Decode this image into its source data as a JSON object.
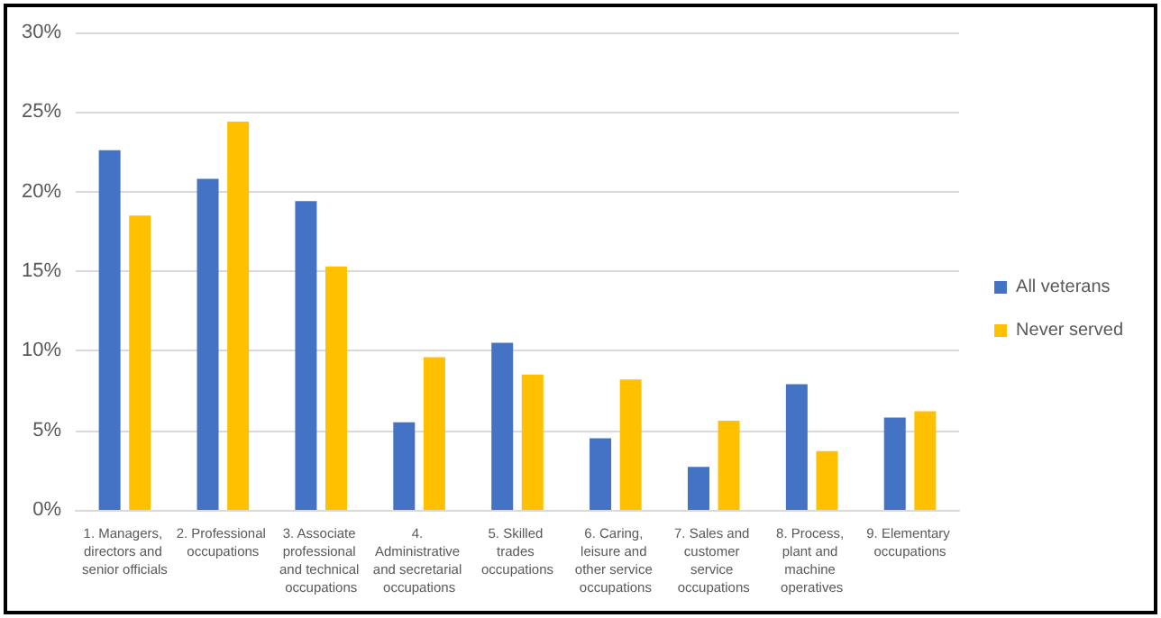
{
  "chart_data": {
    "type": "bar",
    "categories": [
      "1. Managers, directors and senior officials",
      "2. Professional occupations",
      "3. Associate professional and technical occupations",
      "4. Administrative and secretarial occupations",
      "5. Skilled trades occupations",
      "6. Caring, leisure and other service occupations",
      "7. Sales and customer service occupations",
      "8. Process, plant and machine operatives",
      "9. Elementary occupations"
    ],
    "series": [
      {
        "name": "All veterans",
        "color": "#4472c4",
        "values": [
          22.6,
          20.8,
          19.4,
          5.5,
          10.5,
          4.5,
          2.7,
          7.9,
          5.8
        ]
      },
      {
        "name": "Never served",
        "color": "#ffc000",
        "values": [
          18.5,
          24.4,
          15.3,
          9.6,
          8.5,
          8.2,
          5.6,
          3.7,
          6.2
        ]
      }
    ],
    "ylim": [
      0,
      30
    ],
    "yticks": [
      {
        "value": 0,
        "label": "0%"
      },
      {
        "value": 5,
        "label": "5%"
      },
      {
        "value": 10,
        "label": "10%"
      },
      {
        "value": 15,
        "label": "15%"
      },
      {
        "value": 20,
        "label": "20%"
      },
      {
        "value": 25,
        "label": "25%"
      },
      {
        "value": 30,
        "label": "30%"
      }
    ],
    "grid": "y",
    "legend": "right"
  }
}
